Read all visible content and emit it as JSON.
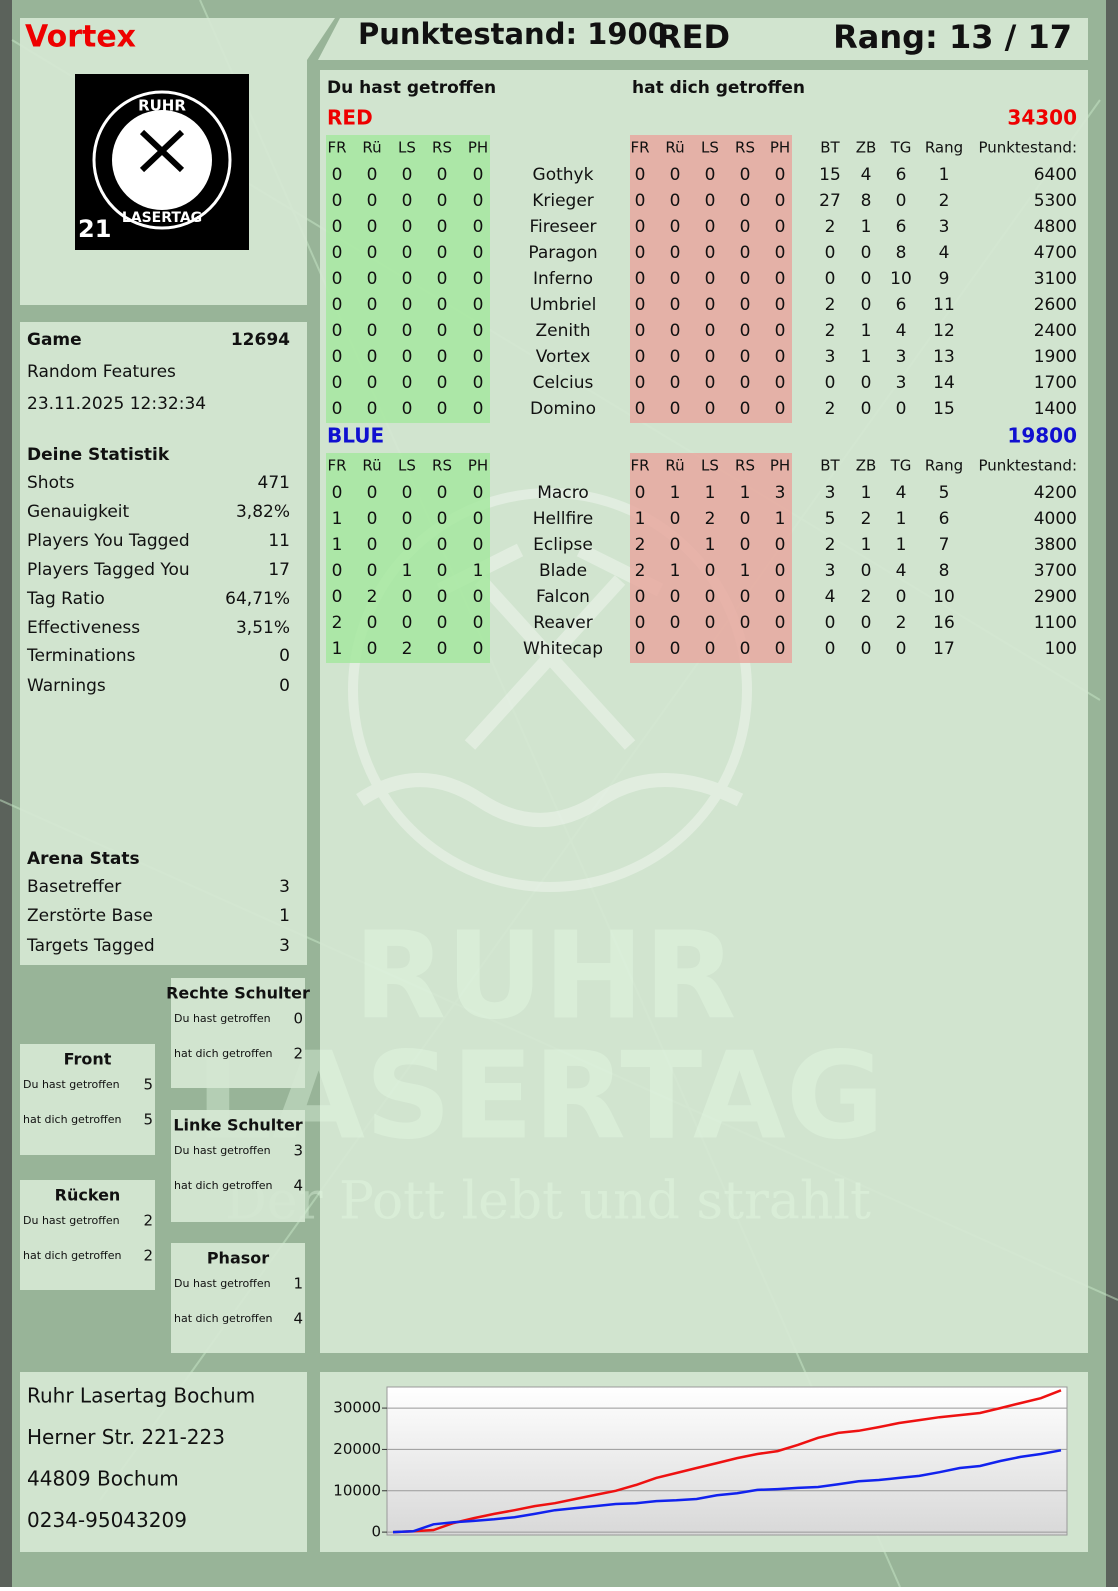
{
  "header": {
    "player": "Vortex",
    "score": "Punktestand: 1900",
    "team": "RED",
    "rank": "Rang: 13 / 17"
  },
  "logo": {
    "top": "RUHR",
    "bottom": "LASERTAG",
    "number": 21
  },
  "game": {
    "label": "Game",
    "id": 12694,
    "mode": "Random Features",
    "date": "23.11.2025 12:32:34"
  },
  "statistik": {
    "title": "Deine Statistik",
    "rows": [
      {
        "label": "Shots",
        "value": 471
      },
      {
        "label": "Genauigkeit",
        "value": "3,82%"
      },
      {
        "label": "Players You Tagged",
        "value": 11
      },
      {
        "label": "Players Tagged You",
        "value": 17
      },
      {
        "label": "Tag Ratio",
        "value": "64,71%"
      },
      {
        "label": "Effectiveness",
        "value": "3,51%"
      },
      {
        "label": "Terminations",
        "value": 0
      },
      {
        "label": "Warnings",
        "value": 0
      }
    ]
  },
  "arena": {
    "title": "Arena Stats",
    "rows": [
      {
        "label": "Basetreffer",
        "value": 3
      },
      {
        "label": "Zerstörte Base",
        "value": 1
      },
      {
        "label": "Targets Tagged",
        "value": 3
      }
    ]
  },
  "zones": [
    {
      "title": "Rechte Schulter",
      "rows": [
        {
          "label": "Du hast getroffen",
          "value": 0
        },
        {
          "label": "hat dich getroffen",
          "value": 2
        }
      ]
    },
    {
      "title": "Front",
      "rows": [
        {
          "label": "Du hast getroffen",
          "value": 5
        },
        {
          "label": "hat dich getroffen",
          "value": 5
        }
      ]
    },
    {
      "title": "Linke Schulter",
      "rows": [
        {
          "label": "Du hast getroffen",
          "value": 3
        },
        {
          "label": "hat dich getroffen",
          "value": 4
        }
      ]
    },
    {
      "title": "Rücken",
      "rows": [
        {
          "label": "Du hast getroffen",
          "value": 2
        },
        {
          "label": "hat dich getroffen",
          "value": 2
        }
      ]
    },
    {
      "title": "Phasor",
      "rows": [
        {
          "label": "Du hast getroffen",
          "value": 1
        },
        {
          "label": "hat dich getroffen",
          "value": 4
        }
      ]
    }
  ],
  "scoreboard": {
    "hit_heading": "Du hast getroffen",
    "got_heading": "hat dich getroffen",
    "hit_columns": [
      "FR",
      "Rü",
      "LS",
      "RS",
      "PH"
    ],
    "got_columns": [
      "FR",
      "Rü",
      "LS",
      "RS",
      "PH"
    ],
    "stat_columns": [
      "BT",
      "ZB",
      "TG",
      "Rang",
      "Punktestand:"
    ],
    "teams": [
      {
        "name": "RED",
        "total": 34300,
        "rows": [
          {
            "name": "Gothyk",
            "hit": [
              0,
              0,
              0,
              0,
              0
            ],
            "got": [
              0,
              0,
              0,
              0,
              0
            ],
            "stats": [
              15,
              4,
              6,
              1,
              6400
            ]
          },
          {
            "name": "Krieger",
            "hit": [
              0,
              0,
              0,
              0,
              0
            ],
            "got": [
              0,
              0,
              0,
              0,
              0
            ],
            "stats": [
              27,
              8,
              0,
              2,
              5300
            ]
          },
          {
            "name": "Fireseer",
            "hit": [
              0,
              0,
              0,
              0,
              0
            ],
            "got": [
              0,
              0,
              0,
              0,
              0
            ],
            "stats": [
              2,
              1,
              6,
              3,
              4800
            ]
          },
          {
            "name": "Paragon",
            "hit": [
              0,
              0,
              0,
              0,
              0
            ],
            "got": [
              0,
              0,
              0,
              0,
              0
            ],
            "stats": [
              0,
              0,
              8,
              4,
              4700
            ]
          },
          {
            "name": "Inferno",
            "hit": [
              0,
              0,
              0,
              0,
              0
            ],
            "got": [
              0,
              0,
              0,
              0,
              0
            ],
            "stats": [
              0,
              0,
              10,
              9,
              3100
            ]
          },
          {
            "name": "Umbriel",
            "hit": [
              0,
              0,
              0,
              0,
              0
            ],
            "got": [
              0,
              0,
              0,
              0,
              0
            ],
            "stats": [
              2,
              0,
              6,
              11,
              2600
            ]
          },
          {
            "name": "Zenith",
            "hit": [
              0,
              0,
              0,
              0,
              0
            ],
            "got": [
              0,
              0,
              0,
              0,
              0
            ],
            "stats": [
              2,
              1,
              4,
              12,
              2400
            ]
          },
          {
            "name": "Vortex",
            "hit": [
              0,
              0,
              0,
              0,
              0
            ],
            "got": [
              0,
              0,
              0,
              0,
              0
            ],
            "stats": [
              3,
              1,
              3,
              13,
              1900
            ]
          },
          {
            "name": "Celcius",
            "hit": [
              0,
              0,
              0,
              0,
              0
            ],
            "got": [
              0,
              0,
              0,
              0,
              0
            ],
            "stats": [
              0,
              0,
              3,
              14,
              1700
            ]
          },
          {
            "name": "Domino",
            "hit": [
              0,
              0,
              0,
              0,
              0
            ],
            "got": [
              0,
              0,
              0,
              0,
              0
            ],
            "stats": [
              2,
              0,
              0,
              15,
              1400
            ]
          }
        ]
      },
      {
        "name": "BLUE",
        "total": 19800,
        "rows": [
          {
            "name": "Macro",
            "hit": [
              0,
              0,
              0,
              0,
              0
            ],
            "got": [
              0,
              1,
              1,
              1,
              3
            ],
            "stats": [
              3,
              1,
              4,
              5,
              4200
            ]
          },
          {
            "name": "Hellfire",
            "hit": [
              1,
              0,
              0,
              0,
              0
            ],
            "got": [
              1,
              0,
              2,
              0,
              1
            ],
            "stats": [
              5,
              2,
              1,
              6,
              4000
            ]
          },
          {
            "name": "Eclipse",
            "hit": [
              1,
              0,
              0,
              0,
              0
            ],
            "got": [
              2,
              0,
              1,
              0,
              0
            ],
            "stats": [
              2,
              1,
              1,
              7,
              3800
            ]
          },
          {
            "name": "Blade",
            "hit": [
              0,
              0,
              1,
              0,
              1
            ],
            "got": [
              2,
              1,
              0,
              1,
              0
            ],
            "stats": [
              3,
              0,
              4,
              8,
              3700
            ]
          },
          {
            "name": "Falcon",
            "hit": [
              0,
              2,
              0,
              0,
              0
            ],
            "got": [
              0,
              0,
              0,
              0,
              0
            ],
            "stats": [
              4,
              2,
              0,
              10,
              2900
            ]
          },
          {
            "name": "Reaver",
            "hit": [
              2,
              0,
              0,
              0,
              0
            ],
            "got": [
              0,
              0,
              0,
              0,
              0
            ],
            "stats": [
              0,
              0,
              2,
              16,
              1100
            ]
          },
          {
            "name": "Whitecap",
            "hit": [
              1,
              0,
              2,
              0,
              0
            ],
            "got": [
              0,
              0,
              0,
              0,
              0
            ],
            "stats": [
              0,
              0,
              0,
              17,
              100
            ]
          }
        ]
      }
    ]
  },
  "address": [
    "Ruhr Lasertag Bochum",
    "Herner Str. 221-223",
    "44809 Bochum",
    "0234-95043209"
  ],
  "watermark": {
    "line1": "RUHR",
    "line2": "LASERTAG",
    "tagline": "Der Pott lebt und strahlt"
  },
  "chart_data": {
    "type": "line",
    "ylim": [
      -700,
      35100
    ],
    "yticks": [
      0,
      10000,
      20000,
      30000
    ],
    "grid": true,
    "series": [
      {
        "color": "#ee1111",
        "values": [
          0,
          200,
          500,
          2200,
          3400,
          4400,
          5300,
          6300,
          7000,
          8000,
          9000,
          10000,
          11400,
          13100,
          14300,
          15500,
          16700,
          17900,
          18900,
          19600,
          21100,
          22800,
          24000,
          24500,
          25400,
          26400,
          27100,
          27800,
          28300,
          28800,
          30000,
          31200,
          32400,
          34300
        ]
      },
      {
        "color": "#1122ee",
        "values": [
          0,
          200,
          1900,
          2400,
          2700,
          3100,
          3600,
          4400,
          5300,
          5800,
          6300,
          6800,
          7000,
          7500,
          7700,
          8000,
          8900,
          9400,
          10200,
          10400,
          10700,
          10900,
          11600,
          12300,
          12600,
          13100,
          13600,
          14500,
          15500,
          16000,
          17200,
          18200,
          18900,
          19800
        ]
      }
    ]
  }
}
